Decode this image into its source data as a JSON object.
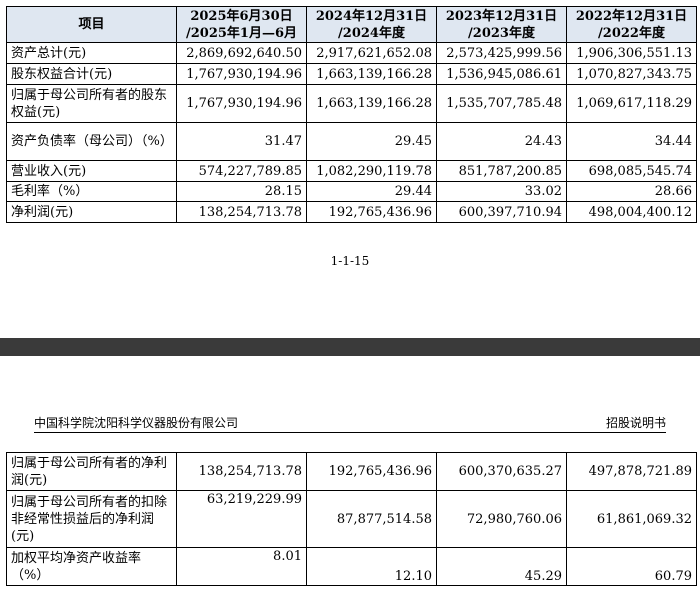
{
  "table1": {
    "headers": [
      "项目",
      "2025年6月30日\n/2025年1月—6月",
      "2024年12月31日\n/2024年度",
      "2023年12月31日\n/2023年度",
      "2022年12月31日\n/2022年度"
    ],
    "rows": [
      {
        "label": "资产总计(元)",
        "values": [
          "2,869,692,640.50",
          "2,917,621,652.08",
          "2,573,425,999.56",
          "1,906,306,551.13"
        ]
      },
      {
        "label": "股东权益合计(元)",
        "values": [
          "1,767,930,194.96",
          "1,663,139,166.28",
          "1,536,945,086.61",
          "1,070,827,343.75"
        ]
      },
      {
        "label": "归属于母公司所有者的股东权益(元)",
        "values": [
          "1,767,930,194.96",
          "1,663,139,166.28",
          "1,535,707,785.48",
          "1,069,617,118.29"
        ]
      },
      {
        "label": "资产负债率（母公司）（%）",
        "values": [
          "31.47",
          "29.45",
          "24.43",
          "34.44"
        ]
      },
      {
        "label": "营业收入(元)",
        "values": [
          "574,227,789.85",
          "1,082,290,119.78",
          "851,787,200.85",
          "698,085,545.74"
        ]
      },
      {
        "label": "毛利率（%）",
        "values": [
          "28.15",
          "29.44",
          "33.02",
          "28.66"
        ]
      },
      {
        "label": "净利润(元)",
        "values": [
          "138,254,713.78",
          "192,765,436.96",
          "600,397,710.94",
          "498,004,400.12"
        ]
      }
    ]
  },
  "page_number": "1-1-15",
  "header": {
    "company": "中国科学院沈阳科学仪器股份有限公司",
    "doc_type": "招股说明书"
  },
  "table2": {
    "rows": [
      {
        "label": "归属于母公司所有者的净利润(元)",
        "values": [
          "138,254,713.78",
          "192,765,436.96",
          "600,370,635.27",
          "497,878,721.89"
        ]
      },
      {
        "label": "归属于母公司所有者的扣除非经常性损益后的净利润(元)",
        "values": [
          "63,219,229.99",
          "87,877,514.58",
          "72,980,760.06",
          "61,861,069.32"
        ]
      },
      {
        "label": "加权平均净资产收益率（%）",
        "values": [
          "8.01",
          "12.10",
          "45.29",
          "60.79"
        ]
      }
    ]
  }
}
